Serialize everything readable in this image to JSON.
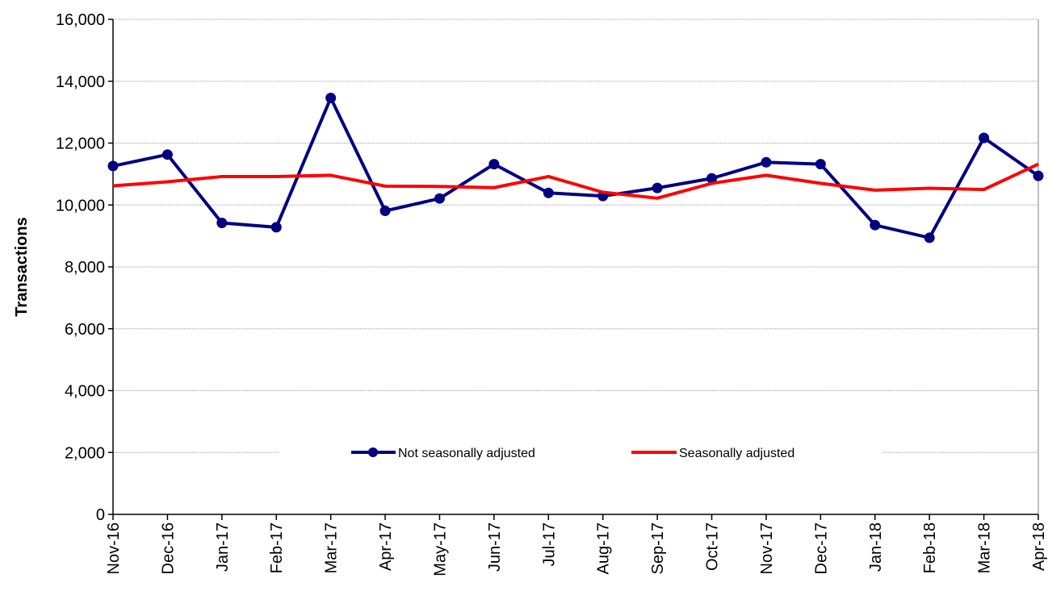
{
  "chart_data": {
    "type": "line",
    "title": "",
    "xlabel": "",
    "ylabel": "Transactions",
    "ylim": [
      0,
      16000
    ],
    "yticks": [
      "0",
      "2,000",
      "4,000",
      "6,000",
      "8,000",
      "10,000",
      "12,000",
      "14,000",
      "16,000"
    ],
    "ytick_values": [
      0,
      2000,
      4000,
      6000,
      8000,
      10000,
      12000,
      14000,
      16000
    ],
    "grid": true,
    "legend_position": "bottom-center",
    "categories": [
      "Nov-16",
      "Dec-16",
      "Jan-17",
      "Feb-17",
      "Mar-17",
      "Apr-17",
      "May-17",
      "Jun-17",
      "Jul-17",
      "Aug-17",
      "Sep-17",
      "Oct-17",
      "Nov-17",
      "Dec-17",
      "Jan-18",
      "Feb-18",
      "Mar-18",
      "Apr-18"
    ],
    "series": [
      {
        "name": "Not seasonally adjusted",
        "color": "#000080",
        "marker": "circle",
        "values": [
          11260,
          11630,
          9420,
          9280,
          13460,
          9810,
          10210,
          11320,
          10390,
          10290,
          10550,
          10860,
          11380,
          11320,
          9350,
          8940,
          12170,
          10940
        ]
      },
      {
        "name": "Seasonally adjusted",
        "color": "#ff0000",
        "marker": "none",
        "values": [
          10620,
          10750,
          10920,
          10920,
          10960,
          10610,
          10600,
          10560,
          10920,
          10410,
          10220,
          10700,
          10960,
          10700,
          10480,
          10540,
          10500,
          11320
        ]
      }
    ]
  }
}
